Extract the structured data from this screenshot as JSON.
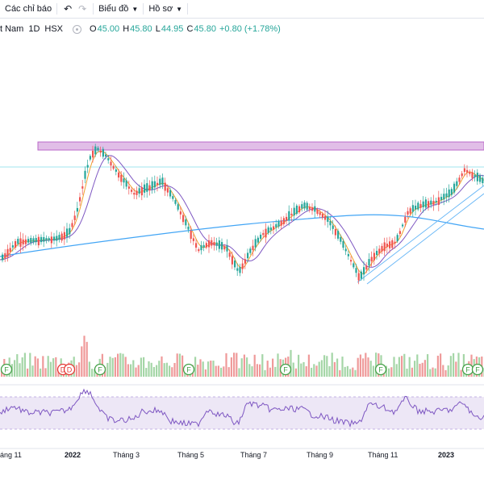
{
  "toolbar": {
    "indicators_label": "Các chỉ báo",
    "undo_icon": "undo-icon",
    "redo_icon": "redo-icon",
    "chart_menu_label": "Biểu đồ",
    "profile_menu_label": "Hồ sơ"
  },
  "legend": {
    "symbol_name": "t Nam",
    "interval": "1D",
    "exchange": "HSX",
    "open_label": "O",
    "open": "45.00",
    "high_label": "H",
    "high": "45.80",
    "low_label": "L",
    "low": "44.95",
    "close_label": "C",
    "close": "45.80",
    "change": "+0.80 (+1.78%)"
  },
  "colors": {
    "up": "#26a69a",
    "down": "#ef5350",
    "ma_fast": "#f0a030",
    "ma_mid": "#7e57c2",
    "ma_long": "#42a5f5",
    "rsi": "#7e57c2",
    "rsi_band": "#ede7f6",
    "resistance_zone": "#e1bee7"
  },
  "x_axis": {
    "labels": [
      "áng 11",
      "2022",
      "Tháng 3",
      "Tháng 5",
      "Tháng 7",
      "Tháng 9",
      "Tháng 11",
      "2023"
    ]
  },
  "event_markers": {
    "dividend_label": "D",
    "financial_label": "F"
  }
}
